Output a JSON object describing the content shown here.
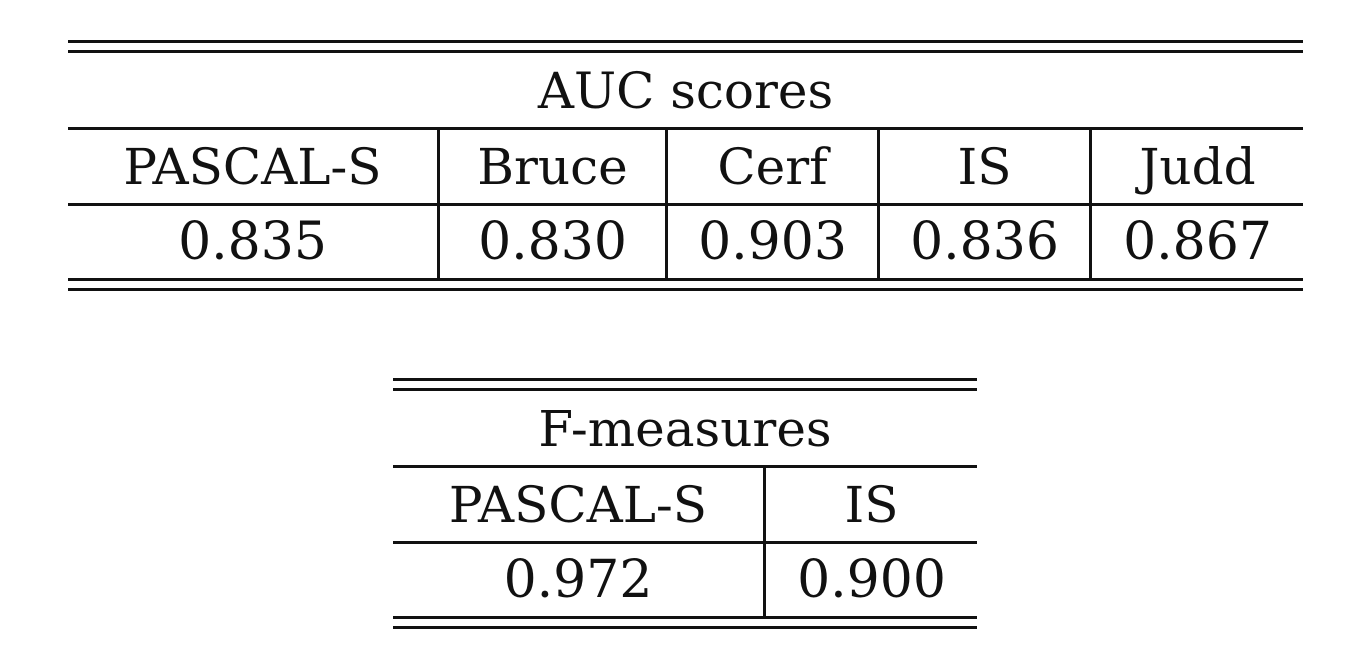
{
  "auc_table": {
    "title": "AUC scores",
    "headers": [
      "PASCAL-S",
      "Bruce",
      "Cerf",
      "IS",
      "Judd"
    ],
    "values": [
      "0.835",
      "0.830",
      "0.903",
      "0.836",
      "0.867"
    ]
  },
  "f_table": {
    "title": "F-measures",
    "headers": [
      "PASCAL-S",
      "IS"
    ],
    "values": [
      "0.972",
      "0.900"
    ]
  }
}
